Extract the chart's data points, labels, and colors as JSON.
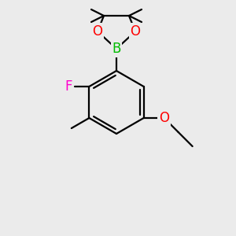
{
  "bg_color": "#ebebeb",
  "bond_color": "#000000",
  "atom_colors": {
    "B": "#00bb00",
    "O": "#ff0000",
    "F": "#ff00cc",
    "C": "#000000"
  },
  "bond_width": 1.6,
  "font_size": 12,
  "figsize": [
    3.0,
    3.0
  ],
  "dpi": 100
}
